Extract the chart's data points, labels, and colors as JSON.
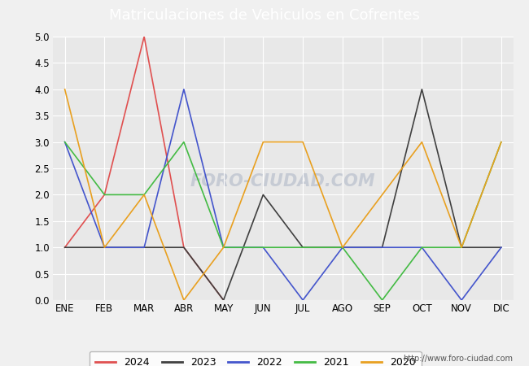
{
  "title": "Matriculaciones de Vehiculos en Cofrentes",
  "months": [
    "ENE",
    "FEB",
    "MAR",
    "ABR",
    "MAY",
    "JUN",
    "JUL",
    "AGO",
    "SEP",
    "OCT",
    "NOV",
    "DIC"
  ],
  "series": {
    "2024": [
      1,
      2,
      5,
      1,
      0,
      null,
      null,
      null,
      null,
      null,
      null,
      null
    ],
    "2023": [
      1,
      1,
      1,
      1,
      0,
      2,
      1,
      1,
      1,
      4,
      1,
      1
    ],
    "2022": [
      3,
      1,
      1,
      4,
      1,
      1,
      0,
      1,
      1,
      1,
      0,
      1
    ],
    "2021": [
      3,
      2,
      2,
      3,
      1,
      1,
      1,
      1,
      0,
      1,
      1,
      3
    ],
    "2020": [
      4,
      1,
      2,
      0,
      1,
      3,
      3,
      1,
      2,
      3,
      1,
      3
    ]
  },
  "colors": {
    "2024": "#e05050",
    "2023": "#404040",
    "2022": "#4455cc",
    "2021": "#44bb44",
    "2020": "#e8a020"
  },
  "ylim": [
    0,
    5.0
  ],
  "yticks": [
    0.0,
    0.5,
    1.0,
    1.5,
    2.0,
    2.5,
    3.0,
    3.5,
    4.0,
    4.5,
    5.0
  ],
  "bg_color": "#f0f0f0",
  "plot_bg_color": "#e8e8e8",
  "title_bg_color": "#5588dd",
  "title_text_color": "#ffffff",
  "url": "http://www.foro-ciudad.com",
  "watermark_text": "FORO-CIUDAD.COM"
}
